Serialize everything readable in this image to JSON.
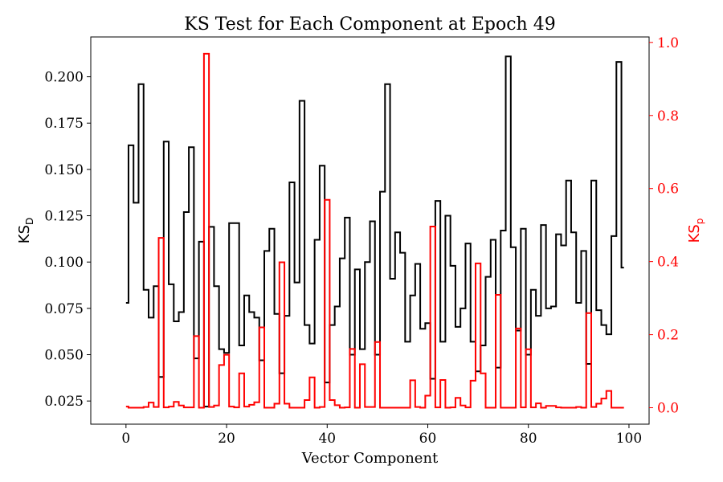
{
  "chart_data": {
    "type": "line",
    "drawstyle": "steps-mid",
    "title": "KS Test for Each Component at Epoch 49",
    "xlabel": "Vector Component",
    "ylabel_left": {
      "main": "KS",
      "sub": "D"
    },
    "ylabel_right": {
      "main": "KS",
      "sub": "p"
    },
    "xlim": [
      -7,
      104
    ],
    "ylim_left": [
      0.0125,
      0.2215
    ],
    "ylim_right": [
      -0.045,
      1.015
    ],
    "x_ticks": [
      0,
      20,
      40,
      60,
      80,
      100
    ],
    "x_tick_labels": [
      "0",
      "20",
      "40",
      "60",
      "80",
      "100"
    ],
    "y_left_ticks": [
      0.025,
      0.05,
      0.075,
      0.1,
      0.125,
      0.15,
      0.175,
      0.2
    ],
    "y_left_tick_labels": [
      "0.025",
      "0.050",
      "0.075",
      "0.100",
      "0.125",
      "0.150",
      "0.175",
      "0.200"
    ],
    "y_right_ticks": [
      0.0,
      0.2,
      0.4,
      0.6,
      0.8,
      1.0
    ],
    "y_right_tick_labels": [
      "0.0",
      "0.2",
      "0.4",
      "0.6",
      "0.8",
      "1.0"
    ],
    "colors": {
      "left": "#000000",
      "right": "#ff0000"
    },
    "grid": false,
    "series": [
      {
        "axis": "left",
        "color": "#000000",
        "values": [
          0.078,
          0.163,
          0.132,
          0.196,
          0.085,
          0.07,
          0.087,
          0.038,
          0.165,
          0.088,
          0.068,
          0.073,
          0.127,
          0.162,
          0.048,
          0.111,
          0.022,
          0.119,
          0.087,
          0.053,
          0.051,
          0.121,
          0.121,
          0.055,
          0.082,
          0.073,
          0.07,
          0.047,
          0.106,
          0.118,
          0.072,
          0.04,
          0.071,
          0.143,
          0.089,
          0.187,
          0.066,
          0.056,
          0.112,
          0.152,
          0.035,
          0.066,
          0.076,
          0.102,
          0.124,
          0.05,
          0.096,
          0.053,
          0.1,
          0.122,
          0.05,
          0.138,
          0.196,
          0.091,
          0.116,
          0.105,
          0.057,
          0.082,
          0.099,
          0.064,
          0.067,
          0.037,
          0.133,
          0.057,
          0.125,
          0.098,
          0.065,
          0.075,
          0.11,
          0.057,
          0.041,
          0.055,
          0.092,
          0.112,
          0.043,
          0.117,
          0.211,
          0.108,
          0.063,
          0.118,
          0.05,
          0.085,
          0.071,
          0.12,
          0.075,
          0.076,
          0.115,
          0.109,
          0.144,
          0.116,
          0.078,
          0.106,
          0.045,
          0.144,
          0.074,
          0.066,
          0.061,
          0.114,
          0.208,
          0.097
        ]
      },
      {
        "axis": "right",
        "color": "#ff0000",
        "values": [
          0.003,
          0.0,
          0.0,
          0.0,
          0.002,
          0.014,
          0.002,
          0.465,
          0.001,
          0.003,
          0.016,
          0.006,
          0.001,
          0.001,
          0.196,
          0.0,
          0.969,
          0.002,
          0.006,
          0.117,
          0.145,
          0.003,
          0.001,
          0.094,
          0.003,
          0.008,
          0.015,
          0.22,
          0.0,
          0.0,
          0.011,
          0.398,
          0.011,
          0.0,
          0.0,
          0.0,
          0.021,
          0.083,
          0.0,
          0.002,
          0.569,
          0.021,
          0.007,
          0.0,
          0.001,
          0.161,
          0.0,
          0.119,
          0.002,
          0.002,
          0.18,
          0.0,
          0.0,
          0.0,
          0.0,
          0.0,
          0.0,
          0.075,
          0.002,
          0.0,
          0.033,
          0.496,
          0.001,
          0.076,
          0.0,
          0.001,
          0.027,
          0.006,
          0.001,
          0.074,
          0.395,
          0.094,
          0.0,
          0.0,
          0.309,
          0.0,
          0.0,
          0.0,
          0.217,
          0.001,
          0.16,
          0.001,
          0.012,
          0.0,
          0.005,
          0.005,
          0.001,
          0.0,
          0.0,
          0.0,
          0.002,
          0.0,
          0.259,
          0.002,
          0.011,
          0.025,
          0.046,
          0.0,
          0.0,
          0.0
        ]
      }
    ]
  }
}
